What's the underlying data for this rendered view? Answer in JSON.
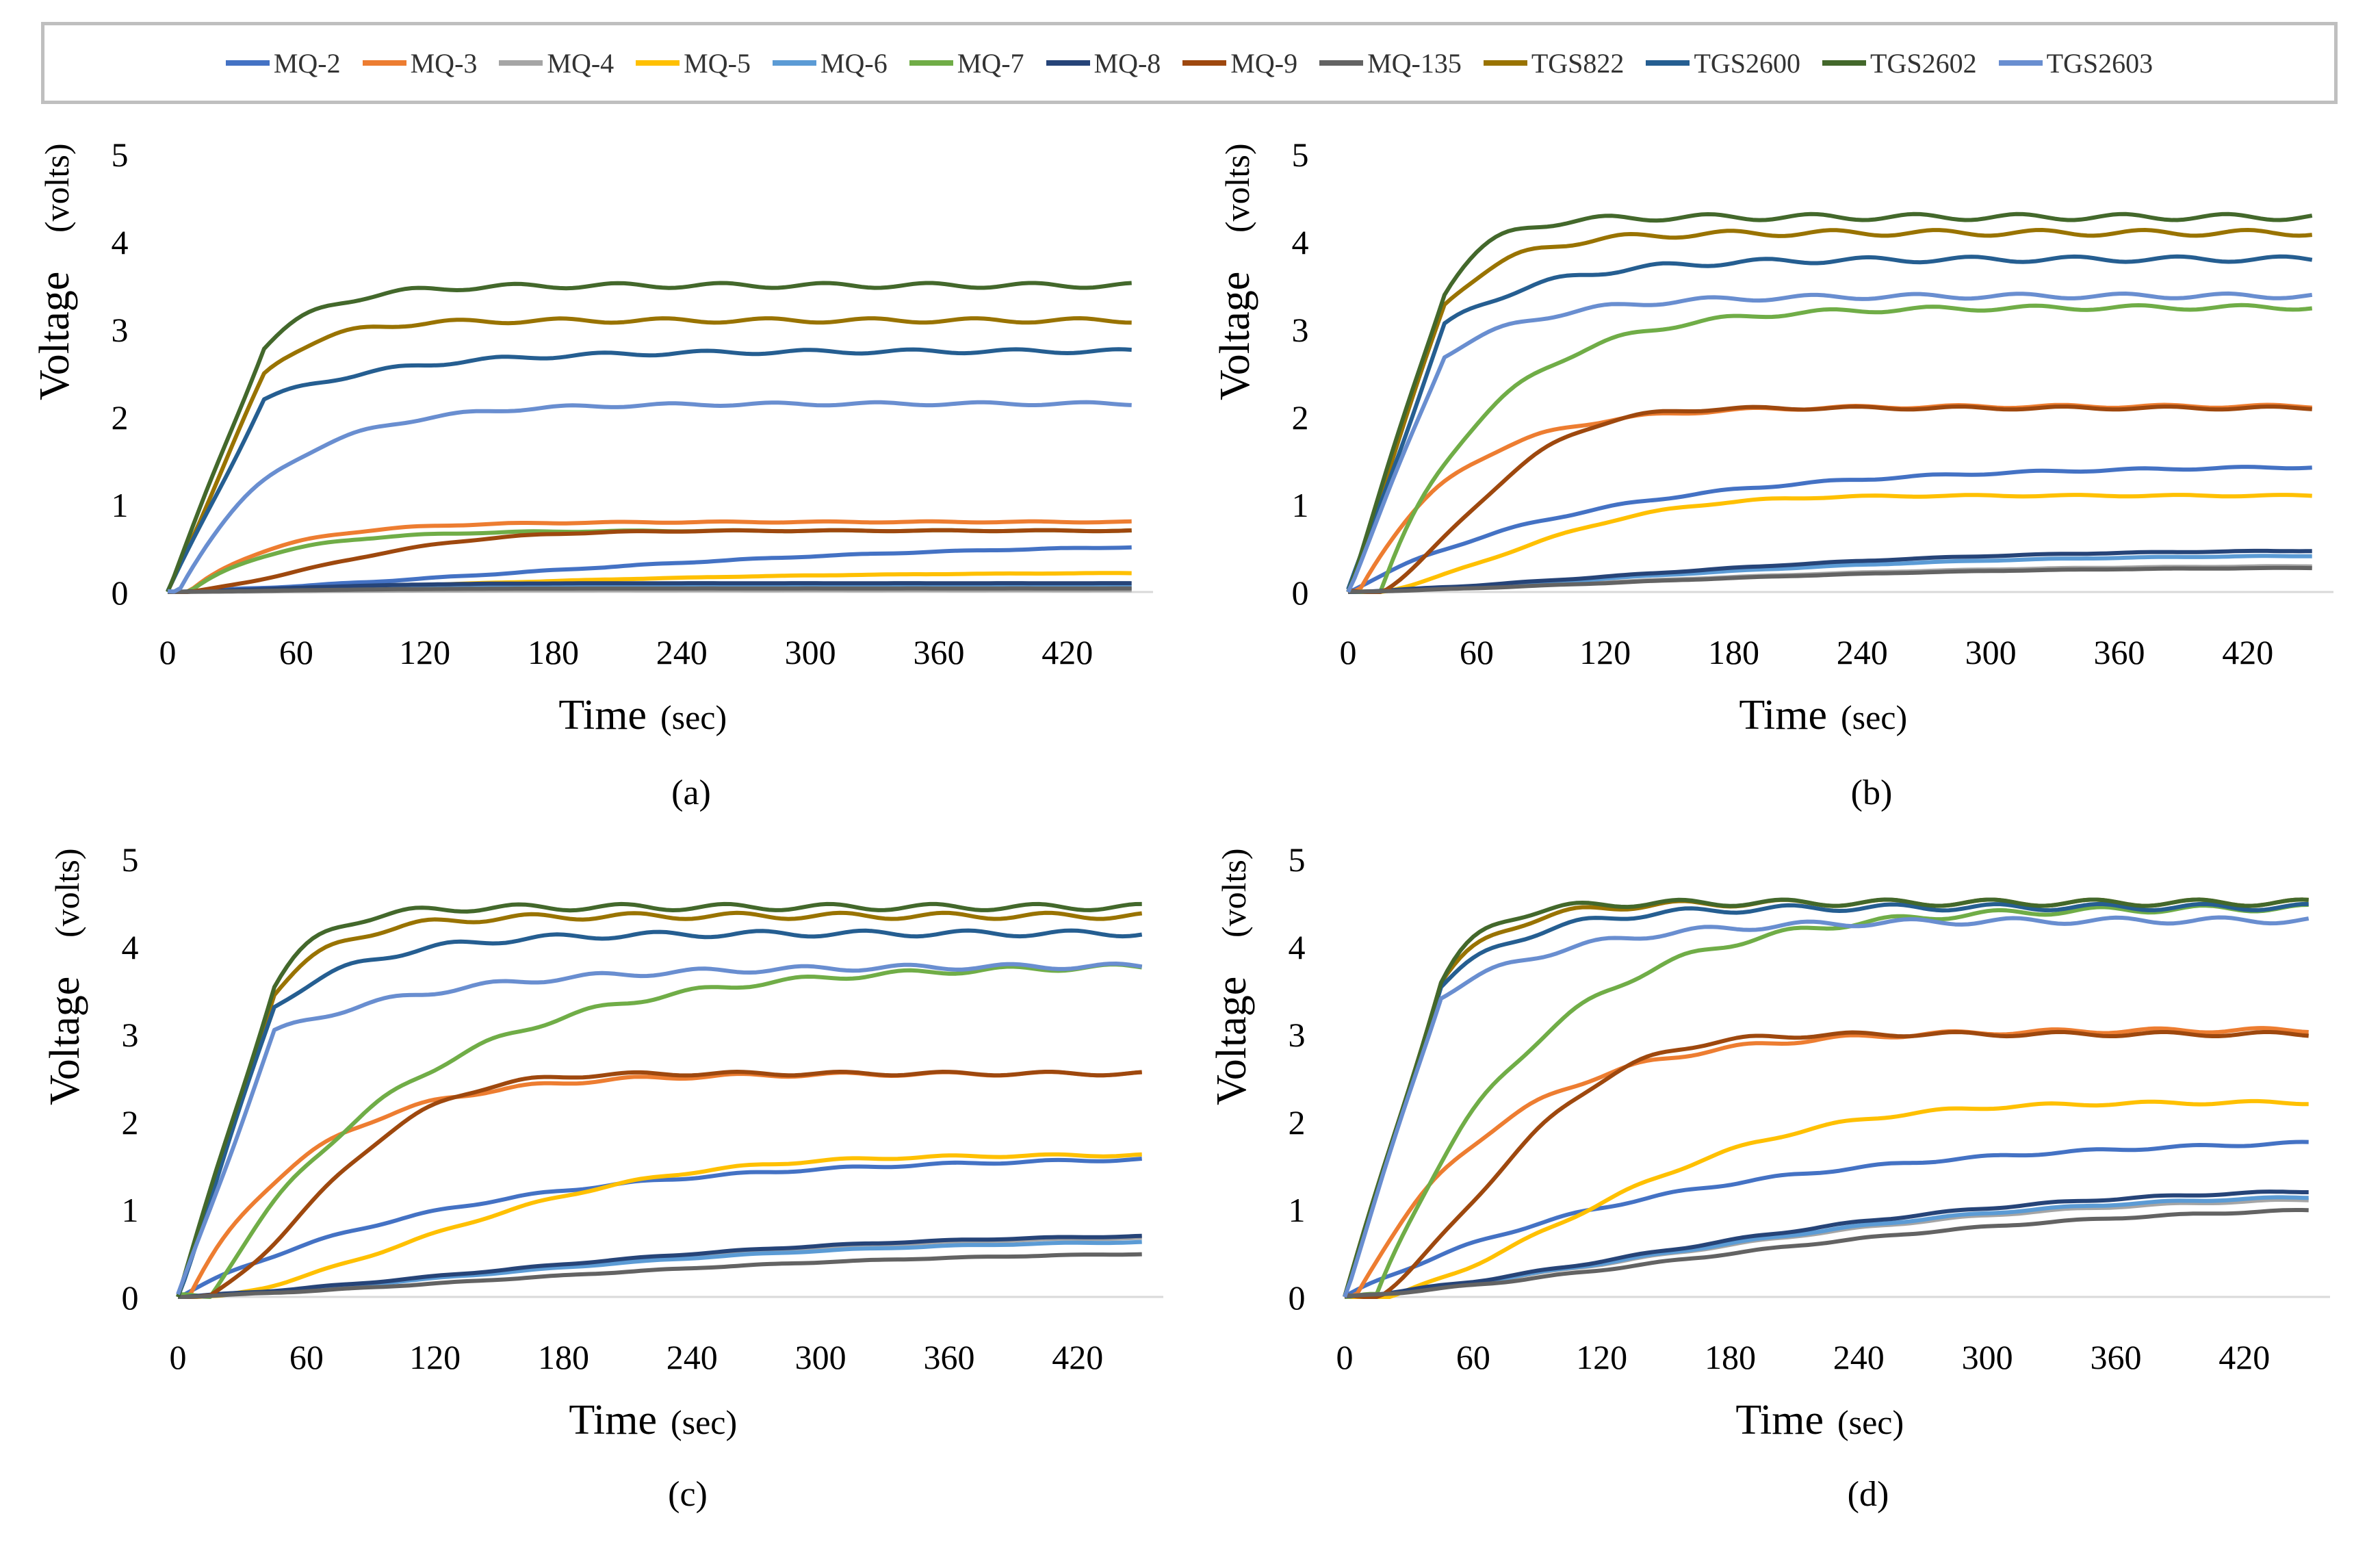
{
  "legend": [
    {
      "name": "MQ-2",
      "color": "#4472C4"
    },
    {
      "name": "MQ-3",
      "color": "#ED7D31"
    },
    {
      "name": "MQ-4",
      "color": "#A5A5A5"
    },
    {
      "name": "MQ-5",
      "color": "#FFC000"
    },
    {
      "name": "MQ-6",
      "color": "#5B9BD5"
    },
    {
      "name": "MQ-7",
      "color": "#70AD47"
    },
    {
      "name": "MQ-8",
      "color": "#264478"
    },
    {
      "name": "MQ-9",
      "color": "#9E480E"
    },
    {
      "name": "MQ-135",
      "color": "#636363"
    },
    {
      "name": "TGS822",
      "color": "#997300"
    },
    {
      "name": "TGS2600",
      "color": "#255E91"
    },
    {
      "name": "TGS2602",
      "color": "#43682B"
    },
    {
      "name": "TGS2603",
      "color": "#698ED0"
    }
  ],
  "chart_data": [
    {
      "type": "line",
      "caption": "(a)",
      "xlabel": "Time",
      "xunit": "(sec)",
      "ylabel": "Voltage",
      "yunit": "(volts)",
      "xticks": [
        "0",
        "60",
        "120",
        "180",
        "240",
        "300",
        "360",
        "420"
      ],
      "yticks": [
        "0",
        "1",
        "2",
        "3",
        "4",
        "5"
      ],
      "xlim": [
        0,
        460
      ],
      "ylim": [
        0,
        5
      ],
      "series": [
        {
          "name": "MQ-2",
          "final": 0.55,
          "tau": 250,
          "lag": 0,
          "mode": "slow"
        },
        {
          "name": "MQ-3",
          "final": 0.8,
          "tau": 40,
          "lag": 10,
          "mode": "fast"
        },
        {
          "name": "MQ-4",
          "final": 0.02,
          "tau": 80,
          "lag": 0,
          "mode": "slow"
        },
        {
          "name": "MQ-5",
          "final": 0.22,
          "tau": 200,
          "lag": 0,
          "mode": "slow"
        },
        {
          "name": "MQ-6",
          "final": 0.06,
          "tau": 80,
          "lag": 0,
          "mode": "slow"
        },
        {
          "name": "MQ-7",
          "final": 0.7,
          "tau": 40,
          "lag": 10,
          "mode": "fast"
        },
        {
          "name": "MQ-8",
          "final": 0.1,
          "tau": 80,
          "lag": 0,
          "mode": "slow"
        },
        {
          "name": "MQ-9",
          "final": 0.7,
          "tau": 90,
          "lag": 10,
          "mode": "slow"
        },
        {
          "name": "MQ-135",
          "final": 0.04,
          "tau": 80,
          "lag": 0,
          "mode": "slow"
        },
        {
          "name": "TGS822",
          "final": 3.1,
          "tau": 25,
          "lag": 0,
          "mode": "sensor"
        },
        {
          "name": "TGS2600",
          "final": 2.75,
          "tau": 60,
          "lag": 0,
          "mode": "sensor"
        },
        {
          "name": "TGS2602",
          "final": 3.5,
          "tau": 28,
          "lag": 0,
          "mode": "sensor"
        },
        {
          "name": "TGS2603",
          "final": 2.15,
          "tau": 45,
          "lag": 5,
          "mode": "fast"
        }
      ]
    },
    {
      "type": "line",
      "caption": "(b)",
      "xlabel": "Time",
      "xunit": "(sec)",
      "ylabel": "Voltage",
      "yunit": "(volts)",
      "xticks": [
        "0",
        "60",
        "120",
        "180",
        "240",
        "300",
        "360",
        "420"
      ],
      "yticks": [
        "0",
        "1",
        "2",
        "3",
        "4",
        "5"
      ],
      "xlim": [
        0,
        460
      ],
      "ylim": [
        0,
        5
      ],
      "series": [
        {
          "name": "MQ-2",
          "final": 1.45,
          "tau": 110,
          "lag": 0,
          "mode": "fast"
        },
        {
          "name": "MQ-3",
          "final": 2.12,
          "tau": 45,
          "lag": 5,
          "mode": "fast"
        },
        {
          "name": "MQ-4",
          "final": 0.3,
          "tau": 200,
          "lag": 0,
          "mode": "slow"
        },
        {
          "name": "MQ-5",
          "final": 1.1,
          "tau": 90,
          "lag": 15,
          "mode": "slow"
        },
        {
          "name": "MQ-6",
          "final": 0.42,
          "tau": 200,
          "lag": 0,
          "mode": "slow"
        },
        {
          "name": "MQ-7",
          "final": 3.25,
          "tau": 50,
          "lag": 15,
          "mode": "fast"
        },
        {
          "name": "MQ-8",
          "final": 0.48,
          "tau": 200,
          "lag": 0,
          "mode": "slow"
        },
        {
          "name": "MQ-9",
          "final": 2.1,
          "tau": 60,
          "lag": 15,
          "mode": "slow"
        },
        {
          "name": "MQ-135",
          "final": 0.28,
          "tau": 200,
          "lag": 0,
          "mode": "slow"
        },
        {
          "name": "TGS822",
          "final": 4.1,
          "tau": 30,
          "lag": 0,
          "mode": "sensor"
        },
        {
          "name": "TGS2600",
          "final": 3.8,
          "tau": 45,
          "lag": 0,
          "mode": "sensor"
        },
        {
          "name": "TGS2602",
          "final": 4.28,
          "tau": 20,
          "lag": 0,
          "mode": "sensor"
        },
        {
          "name": "TGS2603",
          "final": 3.38,
          "tau": 45,
          "lag": 0,
          "mode": "sensor"
        }
      ]
    },
    {
      "type": "line",
      "caption": "(c)",
      "xlabel": "Time",
      "xunit": "(sec)",
      "ylabel": "Voltage",
      "yunit": "(volts)",
      "xticks": [
        "0",
        "60",
        "120",
        "180",
        "240",
        "300",
        "360",
        "420"
      ],
      "yticks": [
        "0",
        "1",
        "2",
        "3",
        "4",
        "5"
      ],
      "xlim": [
        0,
        460
      ],
      "ylim": [
        0,
        5
      ],
      "series": [
        {
          "name": "MQ-2",
          "final": 1.62,
          "tau": 130,
          "lag": 0,
          "mode": "fast"
        },
        {
          "name": "MQ-3",
          "final": 2.55,
          "tau": 55,
          "lag": 5,
          "mode": "fast"
        },
        {
          "name": "MQ-4",
          "final": 0.7,
          "tau": 220,
          "lag": 0,
          "mode": "slow"
        },
        {
          "name": "MQ-5",
          "final": 1.62,
          "tau": 140,
          "lag": 20,
          "mode": "slow"
        },
        {
          "name": "MQ-6",
          "final": 0.65,
          "tau": 220,
          "lag": 0,
          "mode": "slow"
        },
        {
          "name": "MQ-7",
          "final": 3.8,
          "tau": 90,
          "lag": 15,
          "mode": "fast"
        },
        {
          "name": "MQ-8",
          "final": 0.72,
          "tau": 220,
          "lag": 0,
          "mode": "slow"
        },
        {
          "name": "MQ-9",
          "final": 2.55,
          "tau": 70,
          "lag": 15,
          "mode": "slow"
        },
        {
          "name": "MQ-135",
          "final": 0.52,
          "tau": 240,
          "lag": 0,
          "mode": "slow"
        },
        {
          "name": "TGS822",
          "final": 4.35,
          "tau": 30,
          "lag": 0,
          "mode": "sensor"
        },
        {
          "name": "TGS2600",
          "final": 4.15,
          "tau": 45,
          "lag": 0,
          "mode": "sensor"
        },
        {
          "name": "TGS2602",
          "final": 4.45,
          "tau": 22,
          "lag": 0,
          "mode": "sensor"
        },
        {
          "name": "TGS2603",
          "final": 3.78,
          "tau": 80,
          "lag": 0,
          "mode": "sensor"
        }
      ]
    },
    {
      "type": "line",
      "caption": "(d)",
      "xlabel": "Time",
      "xunit": "(sec)",
      "ylabel": "Voltage",
      "yunit": "(volts)",
      "xticks": [
        "0",
        "60",
        "120",
        "180",
        "240",
        "300",
        "360",
        "420"
      ],
      "yticks": [
        "0",
        "1",
        "2",
        "3",
        "4",
        "5"
      ],
      "xlim": [
        0,
        460
      ],
      "ylim": [
        0,
        5
      ],
      "series": [
        {
          "name": "MQ-2",
          "final": 1.85,
          "tau": 150,
          "lag": 0,
          "mode": "fast"
        },
        {
          "name": "MQ-3",
          "final": 3.05,
          "tau": 65,
          "lag": 5,
          "mode": "fast"
        },
        {
          "name": "MQ-4",
          "final": 1.15,
          "tau": 220,
          "lag": 0,
          "mode": "slow"
        },
        {
          "name": "MQ-5",
          "final": 2.22,
          "tau": 130,
          "lag": 20,
          "mode": "slow"
        },
        {
          "name": "MQ-6",
          "final": 1.18,
          "tau": 220,
          "lag": 0,
          "mode": "slow"
        },
        {
          "name": "MQ-7",
          "final": 4.45,
          "tau": 70,
          "lag": 15,
          "mode": "fast"
        },
        {
          "name": "MQ-8",
          "final": 1.25,
          "tau": 220,
          "lag": 0,
          "mode": "slow"
        },
        {
          "name": "MQ-9",
          "final": 3.0,
          "tau": 75,
          "lag": 15,
          "mode": "slow"
        },
        {
          "name": "MQ-135",
          "final": 1.05,
          "tau": 240,
          "lag": 0,
          "mode": "slow"
        },
        {
          "name": "TGS822",
          "final": 4.5,
          "tau": 28,
          "lag": 0,
          "mode": "sensor"
        },
        {
          "name": "TGS2600",
          "final": 4.45,
          "tau": 40,
          "lag": 0,
          "mode": "sensor"
        },
        {
          "name": "TGS2602",
          "final": 4.5,
          "tau": 20,
          "lag": 0,
          "mode": "sensor"
        },
        {
          "name": "TGS2603",
          "final": 4.3,
          "tau": 60,
          "lag": 0,
          "mode": "sensor"
        }
      ]
    }
  ]
}
